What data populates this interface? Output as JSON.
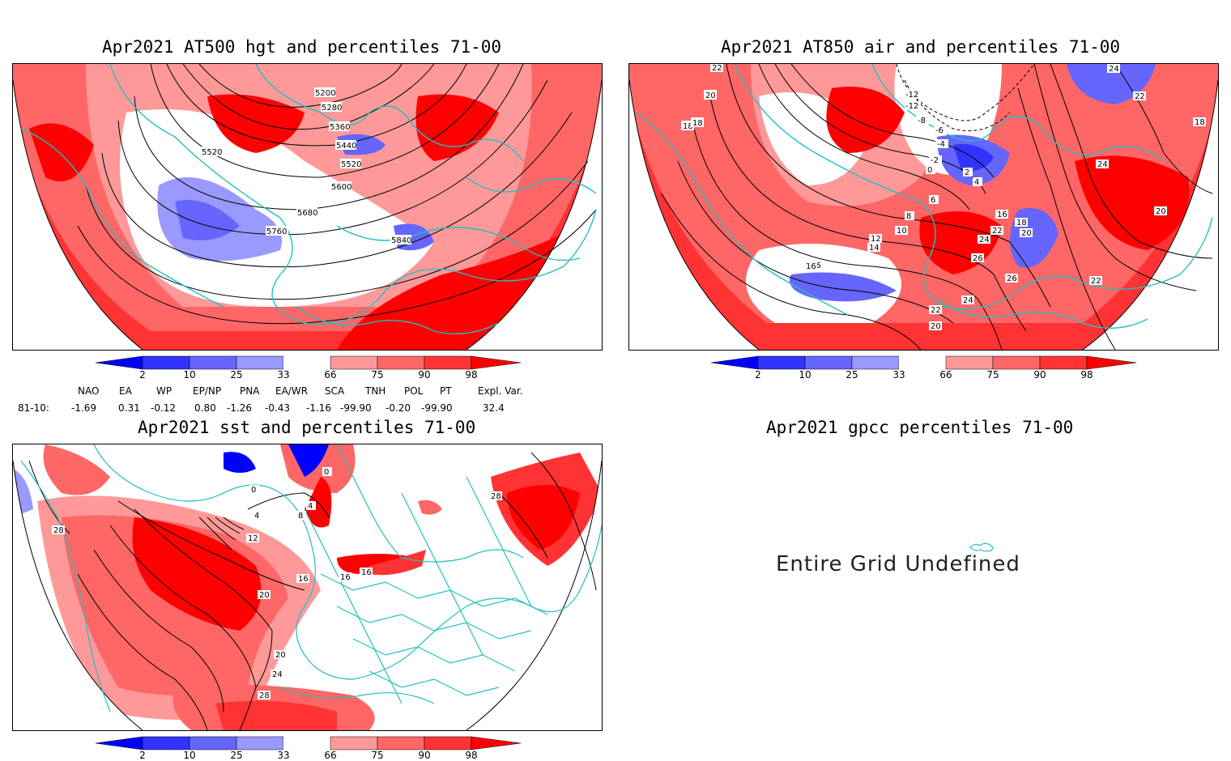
{
  "panels": {
    "top_left": {
      "title": "Apr2021 AT500 hgt and percentiles 71-00",
      "contours": [
        "5200",
        "5280",
        "5360",
        "5440",
        "5520",
        "5520",
        "5600",
        "5680",
        "5760",
        "5840"
      ]
    },
    "top_right": {
      "title": "Apr2021 AT850 air and percentiles 71-00",
      "contours": [
        "22",
        "20",
        "18",
        "18",
        "-12",
        "-12",
        "-8",
        "-6",
        "-4",
        "-2",
        "0",
        "4",
        "2",
        "6",
        "8",
        "10",
        "12",
        "14",
        "16",
        "16",
        "18",
        "20",
        "22",
        "24",
        "26",
        "26",
        "24",
        "22",
        "20",
        "24",
        "22",
        "24",
        "20",
        "22",
        "18",
        "16"
      ]
    },
    "bottom_left": {
      "title": "Apr2021 sst and percentiles 71-00",
      "contours": [
        "0",
        "0",
        "4",
        "8",
        "4",
        "12",
        "16",
        "16",
        "16",
        "20",
        "20",
        "24",
        "28",
        "28",
        "28"
      ]
    },
    "bottom_right": {
      "title": "Apr2021 gpcc percentiles 71-00",
      "message": "Entire Grid Undefined"
    }
  },
  "colorbar": {
    "labels": [
      "2",
      "10",
      "25",
      "33",
      "66",
      "75",
      "90",
      "98"
    ],
    "colors": [
      "#0000ff",
      "#3333ff",
      "#6666ff",
      "#9999ff",
      "#ffffff",
      "#ff9999",
      "#ff6666",
      "#ff3333",
      "#ff0000"
    ]
  },
  "teleconnections": {
    "headers": [
      "NAO",
      "EA",
      "WP",
      "EP/NP",
      "PNA",
      "EA/WR",
      "SCA",
      "TNH",
      "POL",
      "PT",
      "Expl. Var."
    ],
    "row_label": "81-10:",
    "values": [
      "-1.69",
      "0.31",
      "-0.12",
      "0.80",
      "-1.26",
      "-0.43",
      "-1.16",
      "-99.90",
      "-0.20",
      "-99.90",
      "32.4"
    ]
  },
  "colors": {
    "coast": "#22c0c0",
    "contour": "#000000",
    "frame": "#000000"
  }
}
